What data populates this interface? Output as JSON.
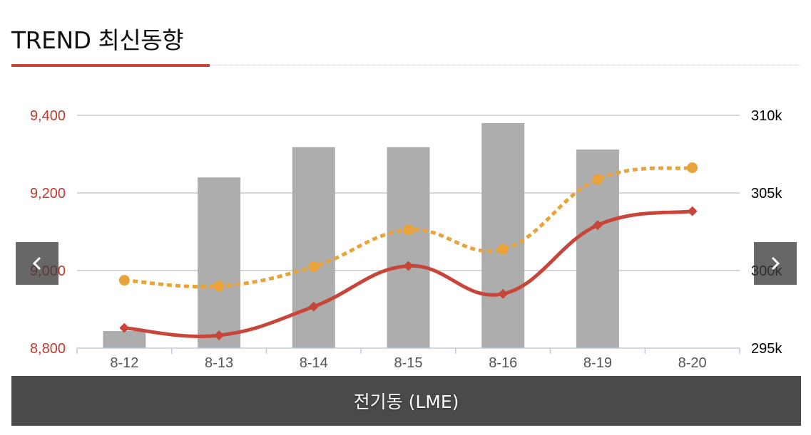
{
  "header": {
    "title": "TREND 최신동향"
  },
  "footer": {
    "label": "전기동 (LME)"
  },
  "nav": {
    "prev_icon": "chevron-left-icon",
    "next_icon": "chevron-right-icon"
  },
  "chart_data": {
    "type": "bar+line",
    "categories": [
      "8-12",
      "8-13",
      "8-14",
      "8-15",
      "8-16",
      "8-19",
      "8-20"
    ],
    "left_axis": {
      "ticks": [
        "9,400",
        "9,200",
        "9,000",
        "8,800"
      ],
      "range": [
        8800,
        9400
      ],
      "color": "#c0392b"
    },
    "right_axis": {
      "ticks": [
        "310k",
        "305k",
        "300k",
        "295k"
      ],
      "range": [
        295000,
        310000
      ],
      "color": "#000000"
    },
    "series": [
      {
        "kind": "bar",
        "axis": "right",
        "color": "#adadad",
        "values": [
          296100,
          306000,
          307950,
          307950,
          309500,
          307800,
          null
        ]
      },
      {
        "kind": "line",
        "style": "dotted",
        "marker": "circle",
        "axis": "left",
        "color": "#e8a33a",
        "values": [
          8975,
          8960,
          9010,
          9105,
          9055,
          9235,
          9265
        ]
      },
      {
        "kind": "line",
        "style": "solid",
        "marker": "diamond",
        "axis": "left",
        "color": "#c8453a",
        "values": [
          8852,
          8833,
          8907,
          9012,
          8940,
          9117,
          9153
        ]
      }
    ],
    "grid": true
  }
}
